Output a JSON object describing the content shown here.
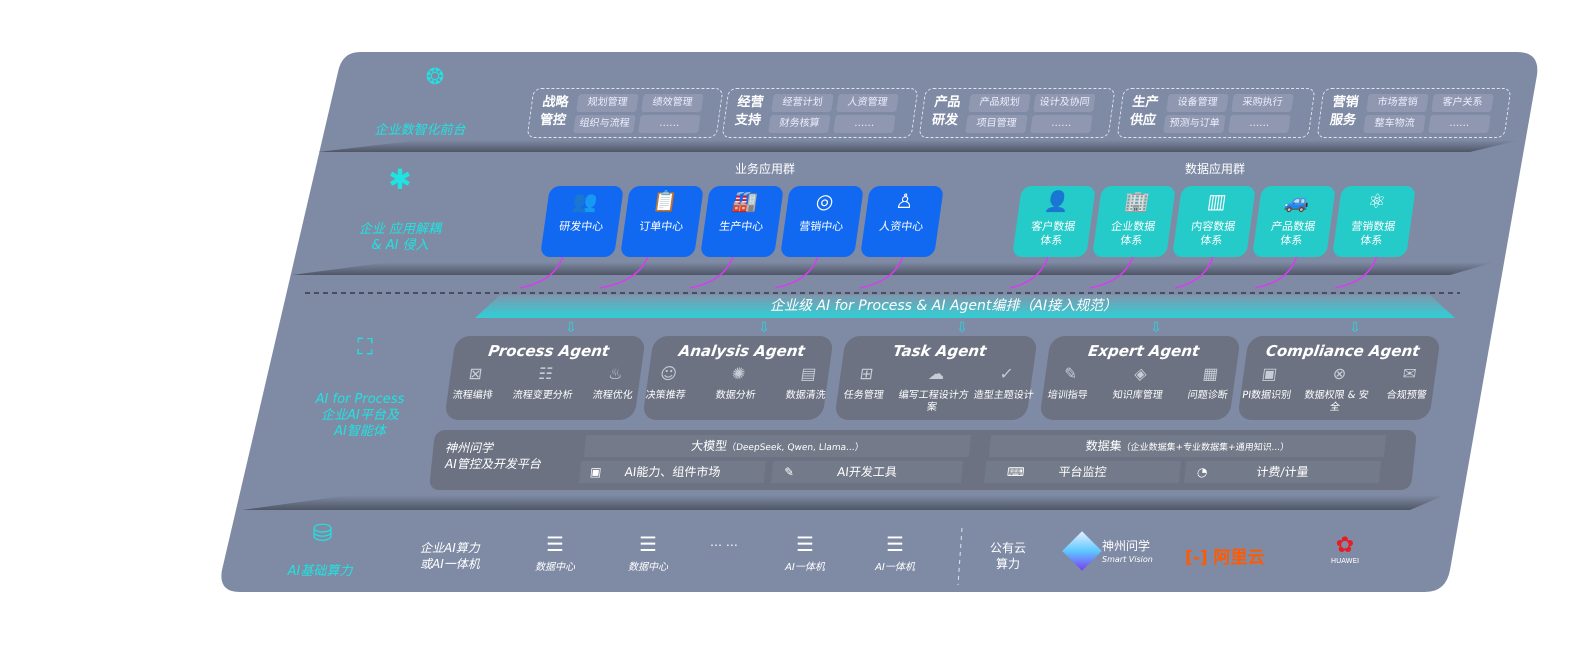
{
  "layers": {
    "frontend": {
      "label": "企业数智化前台",
      "icon": "brain-icon"
    },
    "decouple": {
      "label_line1": "企业 应用解耦",
      "label_line2": "& AI 侵入",
      "icon": "molecule-icon"
    },
    "ai_process": {
      "label_line1": "AI for Process",
      "label_line2": "企业AI平台及",
      "label_line3": "AI智能体",
      "icon": "face-scan-icon"
    },
    "compute": {
      "label": "AI基础算力",
      "icon": "database-icon"
    }
  },
  "frontend_groups": [
    {
      "title": "战略管控",
      "items": [
        "规划管理",
        "绩效管理",
        "组织与流程",
        "……"
      ]
    },
    {
      "title": "经营支持",
      "items": [
        "经营计划",
        "人资管理",
        "财务核算",
        "……"
      ]
    },
    {
      "title": "产品研发",
      "items": [
        "产品规划",
        "设计及协同",
        "项目管理",
        "……"
      ]
    },
    {
      "title": "生产供应",
      "items": [
        "设备管理",
        "采购执行",
        "预测与订单",
        "……"
      ]
    },
    {
      "title": "营销服务",
      "items": [
        "市场营销",
        "客户关系",
        "整车物流",
        "……"
      ]
    }
  ],
  "business_apps": {
    "title": "业务应用群",
    "items": [
      {
        "label": "研发中心",
        "icon": "team-icon"
      },
      {
        "label": "订单中心",
        "icon": "clipboard-icon"
      },
      {
        "label": "生产中心",
        "icon": "factory-icon"
      },
      {
        "label": "营销中心",
        "icon": "target-icon"
      },
      {
        "label": "人资中心",
        "icon": "person-icon"
      }
    ]
  },
  "data_apps": {
    "title": "数据应用群",
    "items": [
      {
        "label": "客户数据体系",
        "icon": "user-icon"
      },
      {
        "label": "企业数据体系",
        "icon": "building-icon"
      },
      {
        "label": "内容数据体系",
        "icon": "books-icon"
      },
      {
        "label": "产品数据体系",
        "icon": "car-icon"
      },
      {
        "label": "营销数据体系",
        "icon": "atom-icon"
      }
    ]
  },
  "banner": "企业级 AI for Process & AI Agent编排（AI接入规范）",
  "agents": [
    {
      "title": "Process Agent",
      "items": [
        "流程编排",
        "流程变更分析",
        "流程优化"
      ]
    },
    {
      "title": "Analysis Agent",
      "items": [
        "决策推荐",
        "数据分析",
        "数据清洗"
      ]
    },
    {
      "title": "Task Agent",
      "items": [
        "任务管理",
        "编写工程设计方案",
        "造型主题设计"
      ]
    },
    {
      "title": "Expert Agent",
      "items": [
        "培训指导",
        "知识库管理",
        "问题诊断"
      ]
    },
    {
      "title": "Compliance Agent",
      "items": [
        "PI数据识别",
        "数据权限 & 安全",
        "合规预警"
      ]
    }
  ],
  "platform": {
    "name_line1": "神州问学",
    "name_line2": "AI管控及开发平台",
    "model": "大模型",
    "model_note": "（DeepSeek, Qwen, Llama...）",
    "dataset": "数据集",
    "dataset_note": "（企业数据集+专业数据集+通用知识...）",
    "tools": [
      "AI能力、组件市场",
      "AI开发工具",
      "平台监控",
      "计费/计量"
    ]
  },
  "compute": {
    "private_line1": "企业AI算力",
    "private_line2": "或AI一体机",
    "servers": [
      "数据中心",
      "数据中心",
      "AI一体机",
      "AI一体机"
    ],
    "ellipsis": "… …",
    "public_line1": "公有云",
    "public_line2": "算力",
    "vendors": [
      {
        "name": "神州问学",
        "sub": "Smart Vision"
      },
      {
        "name": "阿里云"
      },
      {
        "name": "HUAWEI"
      }
    ]
  },
  "colors": {
    "panel": "#7f8ba5",
    "blue": "#1169f2",
    "teal": "#25cbc9",
    "accent": "#1fe3e0",
    "magenta": "#d83cf0",
    "aliyun": "#ff5a00",
    "huawei": "#e81c25"
  }
}
